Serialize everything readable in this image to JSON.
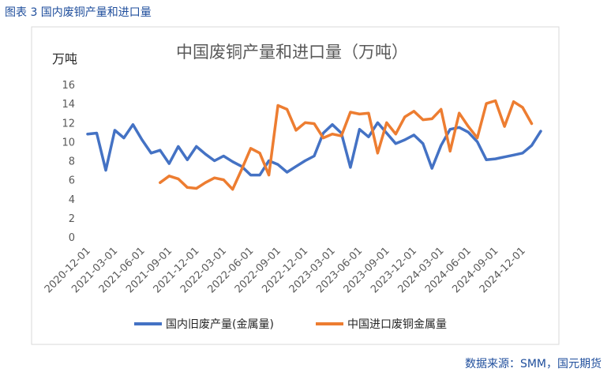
{
  "figure_caption": "图表 3 国内废铜产量和进口量",
  "source": "数据来源：SMM，国元期货",
  "colors": {
    "domestic": "#4472C4",
    "import": "#ED7D31",
    "caption": "#1f4e9c"
  },
  "chart_data": {
    "type": "line",
    "title": "中国废铜产量和进口量（万吨）",
    "ylabel": "万吨",
    "xlabel": "",
    "ylim": [
      0,
      16
    ],
    "yticks": [
      0,
      2,
      4,
      6,
      8,
      10,
      12,
      14,
      16
    ],
    "grid": false,
    "legend": "bottom",
    "x_tick_labels": [
      "2020-12-01",
      "2021-03-01",
      "2021-06-01",
      "2021-09-01",
      "2021-12-01",
      "2022-03-01",
      "2022-06-01",
      "2022-09-01",
      "2022-12-01",
      "2023-03-01",
      "2023-06-01",
      "2023-09-01",
      "2023-12-01",
      "2024-03-01",
      "2024-06-01",
      "2024-09-01",
      "2024-12-01"
    ],
    "tick_index_step": 3,
    "n_points": 51,
    "series": [
      {
        "name": "国内旧废产量(金属量)",
        "color": "#4472C4",
        "start_index": 0,
        "values": [
          10.8,
          10.9,
          7.0,
          11.2,
          10.4,
          11.8,
          10.2,
          8.8,
          9.1,
          7.7,
          9.5,
          8.1,
          9.5,
          8.7,
          8.0,
          8.5,
          7.9,
          7.4,
          6.5,
          6.5,
          8.0,
          7.6,
          6.8,
          7.4,
          8.0,
          8.5,
          10.9,
          11.8,
          10.9,
          7.3,
          11.3,
          10.5,
          12.0,
          10.9,
          9.8,
          10.2,
          10.7,
          9.8,
          7.2,
          9.6,
          11.3,
          11.5,
          11.0,
          10.0,
          8.1,
          8.2,
          8.4,
          8.6,
          8.8,
          9.6,
          11.1
        ]
      },
      {
        "name": "中国进口废铜金属量",
        "color": "#ED7D31",
        "start_index": 8,
        "values": [
          5.7,
          6.4,
          6.1,
          5.2,
          5.1,
          5.7,
          6.2,
          6.0,
          5.0,
          7.1,
          9.3,
          8.8,
          6.5,
          13.8,
          13.4,
          11.2,
          12.0,
          11.9,
          10.4,
          10.8,
          10.6,
          13.1,
          12.9,
          13.0,
          8.8,
          12.0,
          10.8,
          12.6,
          13.2,
          12.3,
          12.4,
          13.4,
          9.0,
          13.0,
          11.6,
          10.4,
          14.0,
          14.3,
          11.6,
          14.2,
          13.6,
          11.9
        ]
      }
    ]
  }
}
